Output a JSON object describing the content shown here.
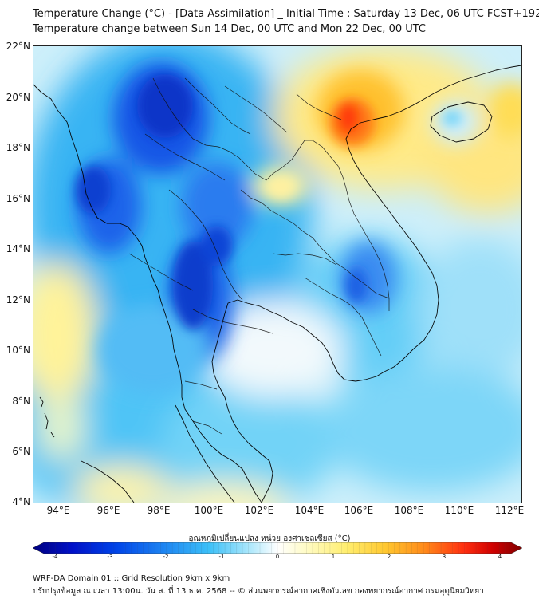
{
  "header": {
    "title_line1": "Temperature Change (°C) - [Data Assimilation] _ Initial Time : Saturday 13 Dec, 06 UTC FCST+192",
    "title_line2": "Temperature change between Sun 14 Dec, 00 UTC and Mon 22 Dec, 00 UTC"
  },
  "map": {
    "lat_labels": [
      "22°N",
      "20°N",
      "18°N",
      "16°N",
      "14°N",
      "12°N",
      "10°N",
      "8°N",
      "6°N",
      "4°N"
    ],
    "lon_labels": [
      "94°E",
      "96°E",
      "98°E",
      "100°E",
      "102°E",
      "104°E",
      "106°E",
      "108°E",
      "110°E",
      "112°E"
    ],
    "extent": {
      "lon_min": 93.0,
      "lon_max": 112.5,
      "lat_min": 4.0,
      "lat_max": 22.2
    }
  },
  "colorbar": {
    "label": "อุณหภูมิเปลี่ยนแปลง หน่วย องศาเซลเซียส (°C)",
    "ticks": [
      "-4",
      "-3",
      "-2",
      "-1",
      "0",
      "1",
      "2",
      "3",
      "4"
    ],
    "range": [
      -4,
      4
    ],
    "colors": [
      "#00007f",
      "#0030d8",
      "#1e6ff0",
      "#2ea8f5",
      "#5fd0f8",
      "#c8eefb",
      "#ffffff",
      "#fffccc",
      "#fff07a",
      "#ffd23c",
      "#ff9a1e",
      "#ff4a10",
      "#e00000",
      "#7f0000"
    ]
  },
  "footer": {
    "line1": "WRF-DA Domain 01 :: Grid Resolution 9km x 9km",
    "line2": "ปรับปรุงข้อมูล ณ เวลา 13:00น. วัน ส. ที่ 13 ธ.ค. 2568 -- © ส่วนพยากรณ์อากาศเชิงตัวเลข กองพยากรณ์อากาศ กรมอุตุนิยมวิทยา"
  }
}
